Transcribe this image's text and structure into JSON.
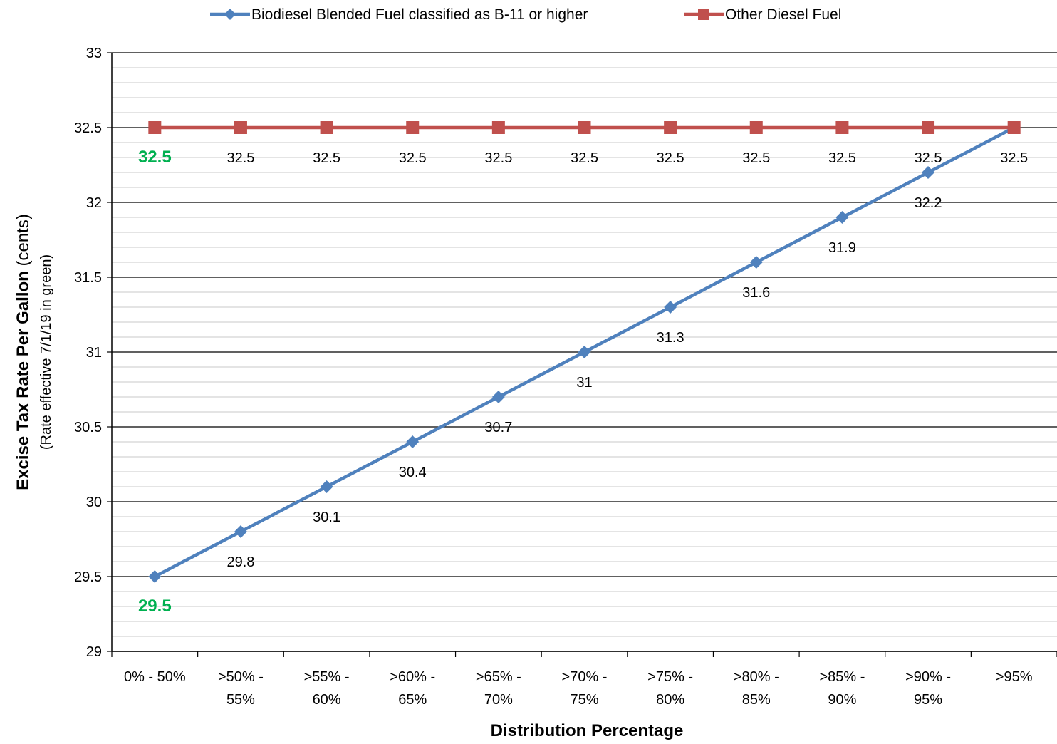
{
  "chart_data": {
    "type": "line",
    "xlabel": "Distribution Percentage",
    "ylabel_bold": "Excise Tax Rate Per Gallon",
    "ylabel_unit": "(cents)",
    "ylabel_note": "(Rate effective 7/1/19 in green)",
    "categories": [
      [
        "0% - 50%"
      ],
      [
        ">50% -",
        "55%"
      ],
      [
        ">55% -",
        "60%"
      ],
      [
        ">60% -",
        "65%"
      ],
      [
        ">65% -",
        "70%"
      ],
      [
        ">70% -",
        "75%"
      ],
      [
        ">75% -",
        "80%"
      ],
      [
        ">80% -",
        "85%"
      ],
      [
        ">85% -",
        "90%"
      ],
      [
        ">90% -",
        "95%"
      ],
      [
        ">95%"
      ]
    ],
    "ylim": [
      29,
      33
    ],
    "yticks": [
      29,
      29.5,
      30,
      30.5,
      31,
      31.5,
      32,
      32.5,
      33
    ],
    "ytick_labels": [
      "29",
      "29.5",
      "30",
      "30.5",
      "31",
      "31.5",
      "32",
      "32.5",
      "33"
    ],
    "grid": true,
    "legend_position": "top",
    "series": [
      {
        "name": "Biodiesel Blended Fuel classified as B-11 or higher",
        "color": "#4F81BD",
        "marker": "diamond",
        "values": [
          29.5,
          29.8,
          30.1,
          30.4,
          30.7,
          31,
          31.3,
          31.6,
          31.9,
          32.2,
          32.5
        ],
        "labels": [
          "29.5",
          "29.8",
          "30.1",
          "30.4",
          "30.7",
          "31",
          "31.3",
          "31.6",
          "31.9",
          "32.2",
          ""
        ]
      },
      {
        "name": "Other Diesel Fuel",
        "color": "#C0504D",
        "marker": "square",
        "values": [
          32.5,
          32.5,
          32.5,
          32.5,
          32.5,
          32.5,
          32.5,
          32.5,
          32.5,
          32.5,
          32.5
        ],
        "labels": [
          "32.5",
          "32.5",
          "32.5",
          "32.5",
          "32.5",
          "32.5",
          "32.5",
          "32.5",
          "32.5",
          "32.5",
          "32.5"
        ]
      }
    ],
    "highlight_color": "#00B050"
  }
}
